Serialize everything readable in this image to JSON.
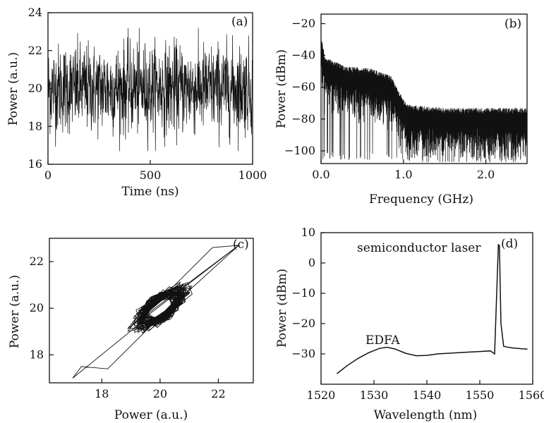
{
  "chart_data": [
    {
      "id": "a",
      "type": "line",
      "panel_label": "(a)",
      "xlabel": "Time (ns)",
      "ylabel": "Power (a.u.)",
      "xlim": [
        0,
        1000
      ],
      "ylim": [
        16,
        24
      ],
      "xticks": [
        0,
        500,
        1000
      ],
      "yticks": [
        16,
        18,
        20,
        22,
        24
      ],
      "series": [
        {
          "mean": 20,
          "std": 0.9,
          "min": 16.7,
          "max": 23.2,
          "points": 1000
        }
      ]
    },
    {
      "id": "b",
      "type": "line",
      "panel_label": "(b)",
      "xlabel": "Frequency (GHz)",
      "ylabel": "Power (dBm)",
      "xlim": [
        0,
        2.5
      ],
      "ylim": [
        -108,
        -14
      ],
      "xticks": [
        0.0,
        1.0,
        2.0
      ],
      "yticks": [
        -20,
        -40,
        -60,
        -80,
        -100
      ],
      "series": [
        {
          "envelope_x": [
            0.0,
            0.05,
            0.3,
            0.6,
            0.85,
            0.95,
            1.05,
            1.5,
            2.0,
            2.5
          ],
          "envelope_y": [
            -35,
            -48,
            -54,
            -55,
            -60,
            -70,
            -78,
            -80,
            -80,
            -80
          ],
          "floor": -101
        }
      ]
    },
    {
      "id": "c",
      "type": "scatter",
      "panel_label": "(c)",
      "xlabel": "Power (a.u.)",
      "ylabel": "Power (a.u.)",
      "xlim": [
        16.2,
        23.2
      ],
      "ylim": [
        16.8,
        23
      ],
      "xticks": [
        18,
        20,
        22
      ],
      "yticks": [
        18,
        20,
        22
      ],
      "series": [
        {
          "center": [
            20,
            20
          ],
          "spread_major": 1.4,
          "spread_minor": 0.55,
          "extreme_low": [
            17.0,
            17.0
          ],
          "extreme_high": [
            22.7,
            22.7
          ]
        }
      ]
    },
    {
      "id": "d",
      "type": "line",
      "panel_label": "(d)",
      "xlabel": "Wavelength (nm)",
      "ylabel": "Power (dBm)",
      "xlim": [
        1520,
        1560
      ],
      "ylim": [
        -40,
        10
      ],
      "xticks": [
        1520,
        1530,
        1540,
        1550,
        1560
      ],
      "yticks": [
        10,
        0,
        -10,
        -20,
        -30
      ],
      "annotations": [
        "semiconductor laser",
        "EDFA"
      ],
      "series": [
        {
          "x": [
            1523,
            1525,
            1527,
            1529,
            1531,
            1532.5,
            1534,
            1536,
            1538,
            1540,
            1542,
            1544,
            1546,
            1548,
            1550,
            1552,
            1552.8,
            1553.3,
            1553.5,
            1553.7,
            1554.0,
            1554.5,
            1556,
            1558,
            1559
          ],
          "y": [
            -36.5,
            -33.8,
            -31.5,
            -29.6,
            -28.2,
            -27.8,
            -28.4,
            -29.8,
            -30.6,
            -30.5,
            -30.0,
            -29.8,
            -29.6,
            -29.4,
            -29.2,
            -29.0,
            -30.0,
            -5.0,
            6.0,
            5.8,
            -20.0,
            -27.5,
            -28.0,
            -28.3,
            -28.4
          ]
        }
      ]
    }
  ]
}
